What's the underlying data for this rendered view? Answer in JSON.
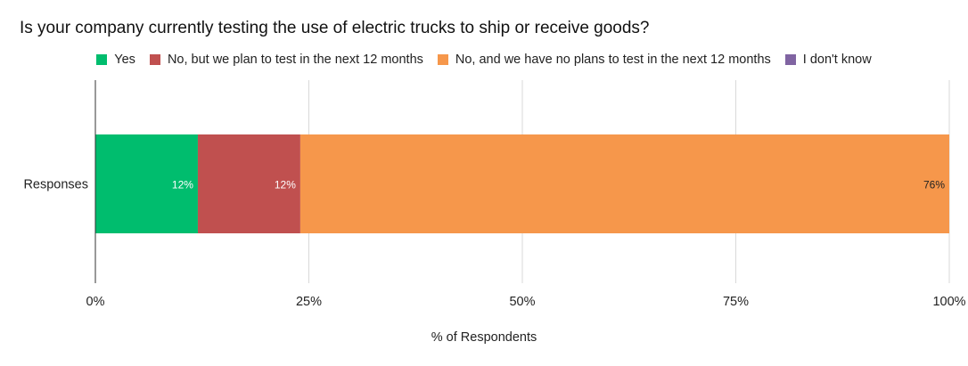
{
  "chart_data": {
    "type": "bar",
    "orientation": "horizontal",
    "stacked": true,
    "title": "Is your company currently testing the use of electric trucks to ship or receive goods?",
    "xlabel": "% of Respondents",
    "ylabel": "",
    "categories": [
      "Responses"
    ],
    "xlim": [
      0,
      100
    ],
    "xticks": [
      "0%",
      "25%",
      "50%",
      "75%",
      "100%"
    ],
    "grid": true,
    "legend_position": "top",
    "series": [
      {
        "name": "Yes",
        "values": [
          12
        ],
        "label": "12%",
        "color": "#00bd6e",
        "label_color": "#ffffff"
      },
      {
        "name": "No, but we plan to test in the next 12 months",
        "values": [
          12
        ],
        "label": "12%",
        "color": "#c0504f",
        "label_color": "#ffffff"
      },
      {
        "name": "No, and we have no plans to test in the next 12 months",
        "values": [
          76
        ],
        "label": "76%",
        "color": "#f6974b",
        "label_color": "#222222"
      },
      {
        "name": "I don't know",
        "values": [
          0
        ],
        "label": "",
        "color": "#8064a2",
        "label_color": "#ffffff"
      }
    ]
  }
}
